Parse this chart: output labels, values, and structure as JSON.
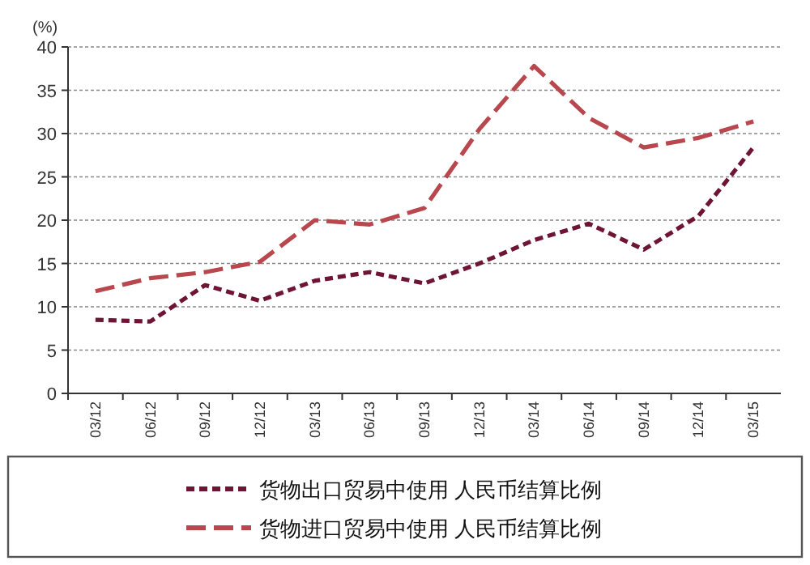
{
  "chart_data": {
    "type": "line",
    "ylabel": "(%)",
    "categories": [
      "03/12",
      "06/12",
      "09/12",
      "12/12",
      "03/13",
      "06/13",
      "09/13",
      "12/13",
      "03/14",
      "06/14",
      "09/14",
      "12/14",
      "03/15"
    ],
    "series": [
      {
        "name": "货物出口贸易中使用 人民币结算比例",
        "color": "#6e1535",
        "line_style": "dotted",
        "values": [
          8.5,
          8.3,
          12.5,
          10.7,
          13.0,
          14.0,
          12.7,
          15.0,
          17.7,
          19.6,
          16.6,
          20.5,
          28.4
        ]
      },
      {
        "name": "货物进口贸易中使用 人民币结算比例",
        "color": "#b8474e",
        "line_style": "dashed",
        "values": [
          11.8,
          13.3,
          14.0,
          15.2,
          20.0,
          19.5,
          21.4,
          30.5,
          37.8,
          31.8,
          28.4,
          29.5,
          31.4
        ]
      }
    ],
    "ylim": [
      0,
      40
    ],
    "yticks": [
      0,
      5,
      10,
      15,
      20,
      25,
      30,
      35,
      40
    ],
    "grid": "y",
    "legend": "bottom",
    "marker": "none"
  }
}
